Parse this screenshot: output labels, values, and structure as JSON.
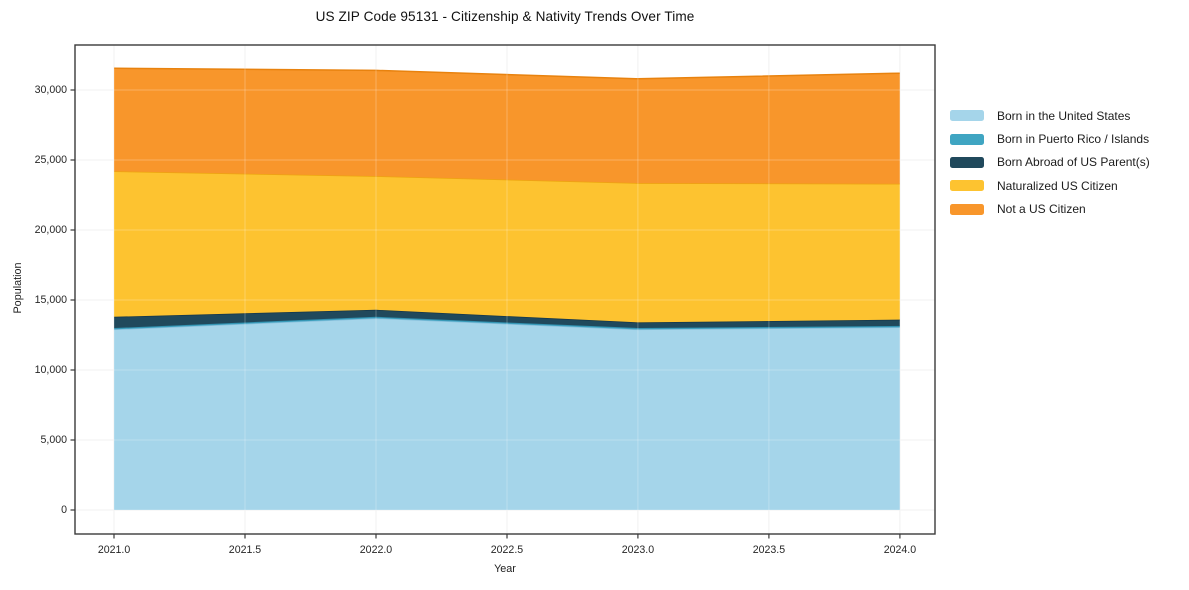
{
  "title": "US ZIP Code 95131 - Citizenship & Nativity Trends Over Time",
  "chart_data": {
    "type": "area",
    "stacked": true,
    "title": "US ZIP Code 95131 - Citizenship & Nativity Trends Over Time",
    "xlabel": "Year",
    "ylabel": "Population",
    "x": [
      2021,
      2022,
      2023,
      2024
    ],
    "series": [
      {
        "name": "Born in the United States",
        "color": "#a5d5ea",
        "edge": "#85bedb",
        "values": [
          12900,
          13700,
          12900,
          13050
        ]
      },
      {
        "name": "Born in Puerto Rico / Islands",
        "color": "#3fa5c2",
        "edge": "#2f8cab",
        "values": [
          100,
          100,
          100,
          100
        ]
      },
      {
        "name": "Born Abroad of US Parent(s)",
        "color": "#20495c",
        "edge": "#16374a",
        "values": [
          800,
          500,
          400,
          450
        ]
      },
      {
        "name": "Naturalized US Citizen",
        "color": "#fdc330",
        "edge": "#eda40f",
        "values": [
          10400,
          9550,
          9950,
          9700
        ]
      },
      {
        "name": "Not a US Citizen",
        "color": "#f8962b",
        "edge": "#e8820e",
        "values": [
          7350,
          7550,
          7450,
          7900
        ]
      }
    ],
    "totals": [
      31550,
      31400,
      30800,
      31200
    ],
    "x_ticks": [
      "2021.0",
      "2021.5",
      "2022.0",
      "2022.5",
      "2023.0",
      "2023.5",
      "2024.0"
    ],
    "x_tick_values": [
      2021,
      2021.5,
      2022,
      2022.5,
      2023,
      2023.5,
      2024
    ],
    "y_ticks": [
      "0",
      "5,000",
      "10,000",
      "15,000",
      "20,000",
      "25,000",
      "30,000"
    ],
    "y_tick_values": [
      0,
      5000,
      10000,
      15000,
      20000,
      25000,
      30000
    ],
    "xlim": [
      2020.851,
      2024.134
    ],
    "ylim": [
      -1714,
      33214
    ],
    "grid": true,
    "legend_position": "right",
    "colors": {
      "grid": "#ececec",
      "spine": "#3a3a3a",
      "tick_text": "#262626"
    }
  }
}
